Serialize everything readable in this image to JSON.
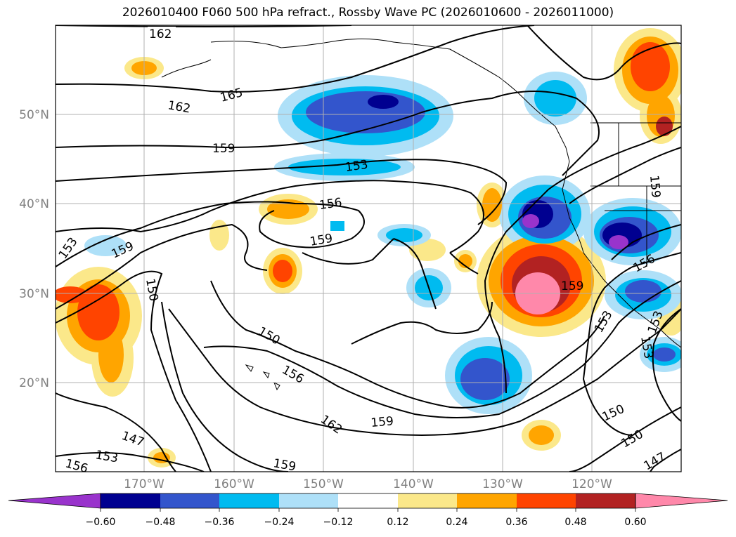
{
  "title": "2026010400 F060 500 hPa refract., Rossby Wave PC (2026010600 - 2026011000)",
  "map": {
    "lon_labels": [
      "170°W",
      "160°W",
      "150°W",
      "140°W",
      "130°W",
      "120°W"
    ],
    "lat_labels": [
      "50°N",
      "40°N",
      "30°N",
      "20°N"
    ],
    "contour_labels": [
      "162",
      "165",
      "162",
      "159",
      "153",
      "156",
      "159",
      "153",
      "159",
      "150",
      "150",
      "156",
      "162",
      "159",
      "147",
      "153",
      "156",
      "159",
      "159",
      "153",
      "156",
      "153",
      "153",
      "150",
      "150",
      "147",
      "159"
    ],
    "grid_color": "#b0b0b0",
    "tick_label_color": "#808080"
  },
  "colorbar": {
    "ticks": [
      "−0.60",
      "−0.48",
      "−0.36",
      "−0.24",
      "−0.12",
      "0.12",
      "0.24",
      "0.36",
      "0.48",
      "0.60"
    ],
    "colors": [
      "#9933cc",
      "#000090",
      "#3355cc",
      "#00bbf0",
      "#aee0f8",
      "#ffffff",
      "#fbe88a",
      "#ffa500",
      "#ff4400",
      "#b22222",
      "#ff88aa"
    ]
  }
}
